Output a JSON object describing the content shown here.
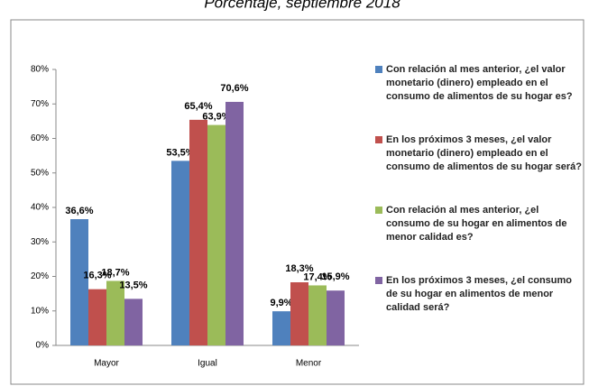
{
  "chart_data": {
    "type": "bar",
    "title": "Porcentaje, septiembre 2018",
    "categories": [
      "Mayor",
      "Igual",
      "Menor"
    ],
    "series": [
      {
        "name": "Con relación al mes anterior, ¿el valor monetario (dinero) empleado en el consumo de alimentos de su hogar es?",
        "color": "#4f81bd",
        "values": [
          36.6,
          53.5,
          9.9
        ],
        "value_labels": [
          "36,6%",
          "53,5%",
          "9,9%"
        ]
      },
      {
        "name": "En los próximos 3 meses, ¿el valor monetario (dinero) empleado en el consumo de alimentos de su hogar será?",
        "color": "#c0504d",
        "values": [
          16.3,
          65.4,
          18.3
        ],
        "value_labels": [
          "16,3%",
          "65,4%",
          "18,3%"
        ]
      },
      {
        "name": "Con relación al mes anterior, ¿el consumo de su hogar en alimentos de menor calidad es?",
        "color": "#9bbb59",
        "values": [
          18.7,
          63.9,
          17.4
        ],
        "value_labels": [
          "18,7%",
          "63,9%",
          "17,4%"
        ]
      },
      {
        "name": "En los próximos 3 meses, ¿el consumo de su hogar en alimentos de menor calidad será?",
        "color": "#8064a2",
        "values": [
          13.5,
          70.6,
          15.9
        ],
        "value_labels": [
          "13,5%",
          "70,6%",
          "15,9%"
        ]
      }
    ],
    "ylim": [
      0,
      80
    ],
    "yticks": [
      {
        "value": 0,
        "label": "0%"
      },
      {
        "value": 10,
        "label": "10%"
      },
      {
        "value": 20,
        "label": "20%"
      },
      {
        "value": 30,
        "label": "30%"
      },
      {
        "value": 40,
        "label": "40%"
      },
      {
        "value": 50,
        "label": "50%"
      },
      {
        "value": 60,
        "label": "60%"
      },
      {
        "value": 70,
        "label": "70%"
      },
      {
        "value": 80,
        "label": "80%"
      }
    ],
    "legend": "right"
  }
}
